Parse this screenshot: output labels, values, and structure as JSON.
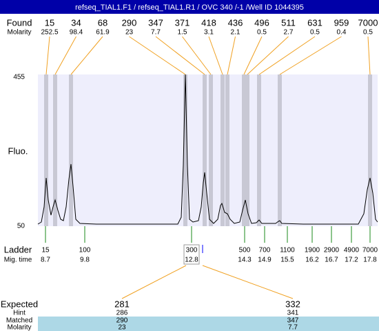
{
  "title": "refseq_TIAL1.F1 / refseq_TIAL1.R1 / OVC 340 /-1 /Well ID 1044395",
  "found": {
    "label": "Found",
    "values": [
      15,
      34,
      68,
      290,
      347,
      371,
      418,
      436,
      496,
      511,
      631,
      959,
      7000
    ]
  },
  "molarity": {
    "label": "Molarity",
    "values": [
      252.5,
      98.4,
      61.9,
      23,
      7.7,
      1.5,
      3.1,
      2.1,
      0.5,
      2.7,
      0.5,
      0.4,
      0.5
    ]
  },
  "y_axis": {
    "label": "Fluo.",
    "max": 455,
    "min": 50
  },
  "ladder": {
    "label": "Ladder",
    "values": [
      15,
      100,
      300,
      500,
      700,
      1100,
      1900,
      2900,
      4900,
      7000
    ]
  },
  "mig_time": {
    "label": "Mig. time",
    "values": [
      8.7,
      9.8,
      12.8,
      14.3,
      14.9,
      15.5,
      16.2,
      16.7,
      17.2,
      17.8
    ]
  },
  "expected": {
    "label": "Expected",
    "values": [
      281,
      332
    ]
  },
  "hint": {
    "label": "Hint",
    "values": [
      286,
      341
    ]
  },
  "matched": {
    "label": "Matched",
    "values": [
      290,
      347
    ]
  },
  "matched_molarity": {
    "label": "Molarity",
    "values": [
      23,
      7.7
    ]
  }
}
